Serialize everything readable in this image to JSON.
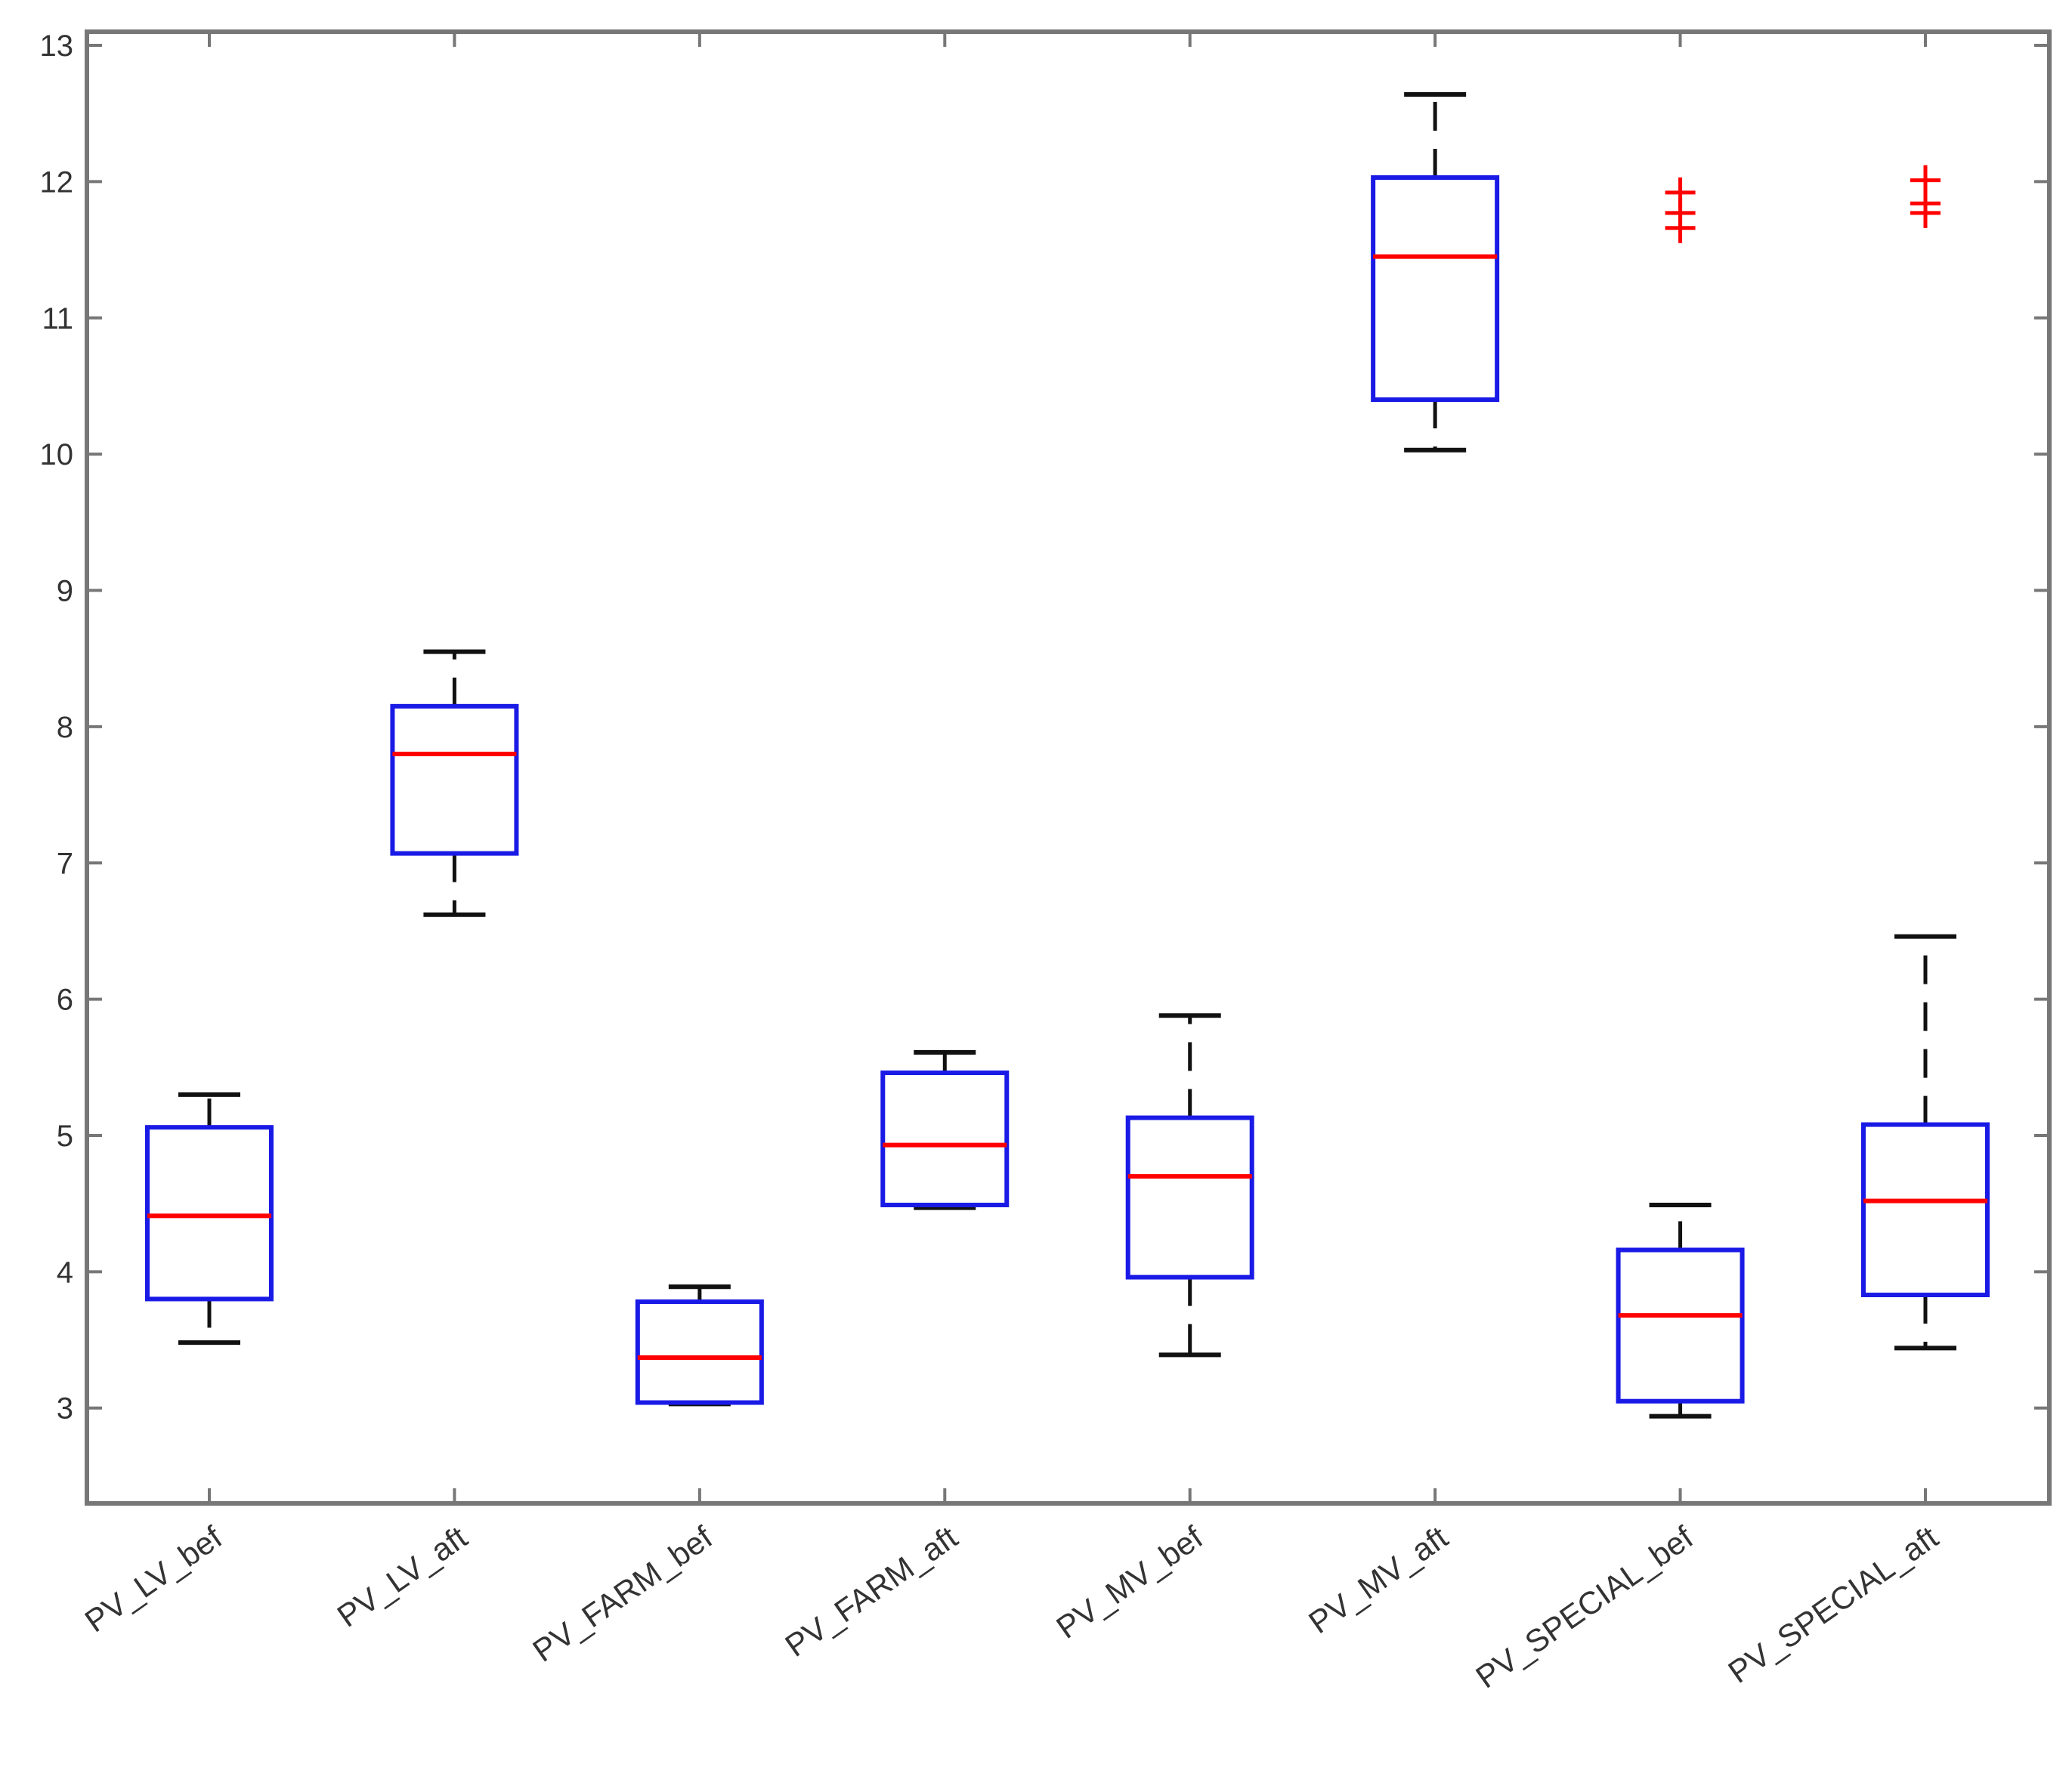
{
  "chart_data": {
    "type": "boxplot",
    "title": "",
    "xlabel": "",
    "ylabel": "",
    "ylim": [
      2.3,
      13.1
    ],
    "yticks": [
      3,
      4,
      5,
      6,
      7,
      8,
      9,
      10,
      11,
      12,
      13
    ],
    "ytick_labels": [
      "3",
      "4",
      "5",
      "6",
      "7",
      "8",
      "9",
      "10",
      "11",
      "12",
      "13"
    ],
    "grid": false,
    "categories": [
      "PV_LV_bef",
      "PV_LV_aft",
      "PV_FARM_bef",
      "PV_FARM_aft",
      "PV_MV_bef",
      "PV_MV_aft",
      "PV_SPECIAL_bef",
      "PV_SPECIAL_aft"
    ],
    "boxes": [
      {
        "label": "PV_LV_bef",
        "whisker_low": 3.48,
        "q1": 3.8,
        "median": 4.41,
        "q3": 5.06,
        "whisker_high": 5.3,
        "outliers": []
      },
      {
        "label": "PV_LV_aft",
        "whisker_low": 6.62,
        "q1": 7.07,
        "median": 7.8,
        "q3": 8.15,
        "whisker_high": 8.55,
        "outliers": []
      },
      {
        "label": "PV_FARM_bef",
        "whisker_low": 3.03,
        "q1": 3.04,
        "median": 3.37,
        "q3": 3.78,
        "whisker_high": 3.89,
        "outliers": []
      },
      {
        "label": "PV_FARM_aft",
        "whisker_low": 4.47,
        "q1": 4.49,
        "median": 4.93,
        "q3": 5.46,
        "whisker_high": 5.61,
        "outliers": []
      },
      {
        "label": "PV_MV_bef",
        "whisker_low": 3.39,
        "q1": 3.96,
        "median": 4.7,
        "q3": 5.13,
        "whisker_high": 5.88,
        "outliers": []
      },
      {
        "label": "PV_MV_aft",
        "whisker_low": 10.03,
        "q1": 10.4,
        "median": 11.45,
        "q3": 12.03,
        "whisker_high": 12.64,
        "outliers": []
      },
      {
        "label": "PV_SPECIAL_bef",
        "whisker_low": 2.94,
        "q1": 3.05,
        "median": 3.68,
        "q3": 4.16,
        "whisker_high": 4.49,
        "outliers": [
          11.66,
          11.77,
          11.92
        ]
      },
      {
        "label": "PV_SPECIAL_aft",
        "whisker_low": 3.44,
        "q1": 3.83,
        "median": 4.52,
        "q3": 5.08,
        "whisker_high": 6.46,
        "outliers": [
          11.77,
          11.84,
          12.01
        ]
      }
    ],
    "colors": {
      "box": "#1a1ae6",
      "median": "#ff0000",
      "whisker": "#111111",
      "outlier": "#ff0000",
      "axis": "#777777"
    }
  }
}
